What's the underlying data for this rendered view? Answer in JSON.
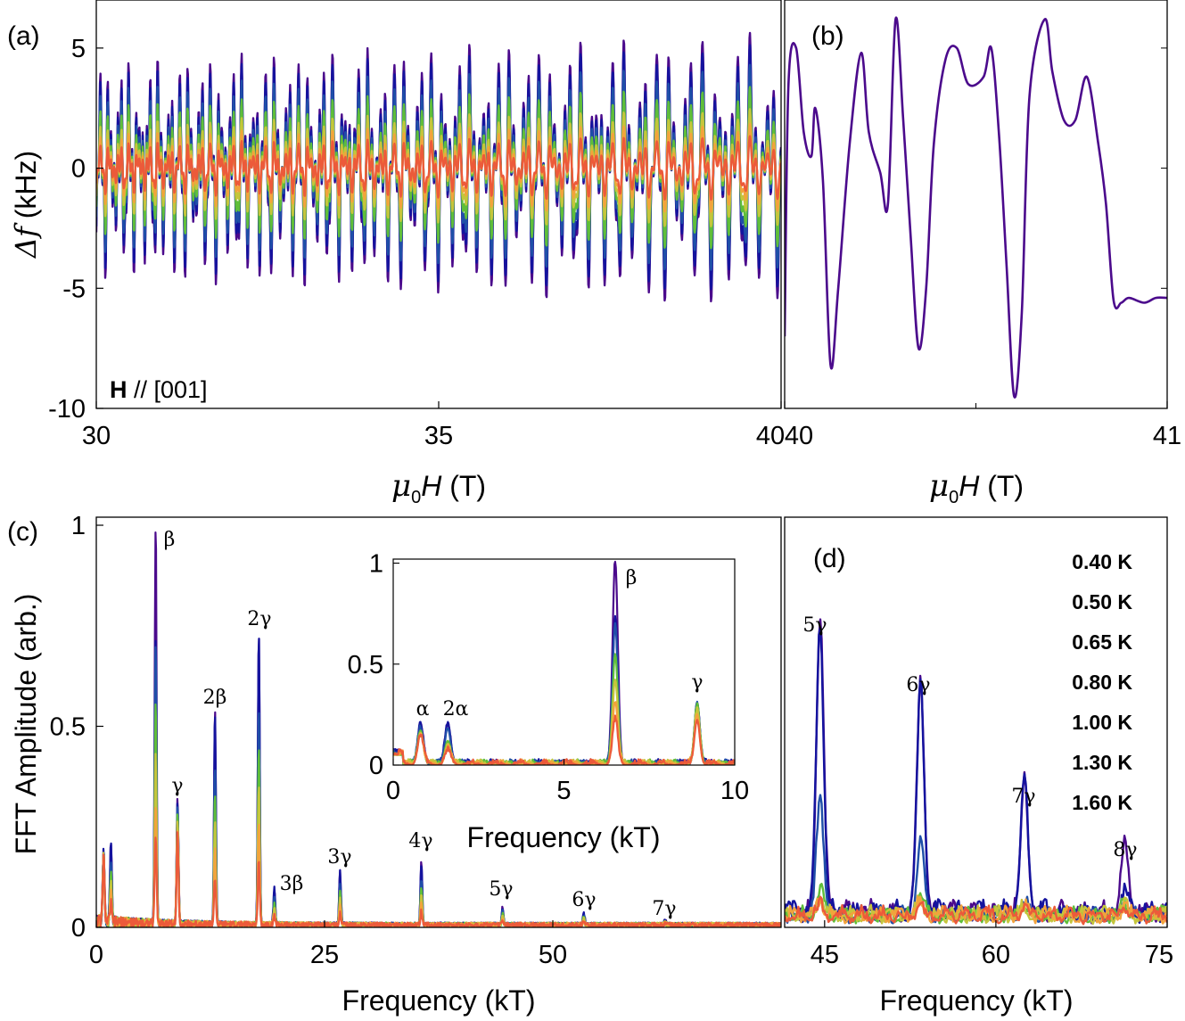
{
  "colors": {
    "0.40 K": "#4b0a8c",
    "0.50 K": "#14139e",
    "0.65 K": "#1f4fa8",
    "0.80 K": "#5fbe3a",
    "1.00 K": "#c5c53c",
    "1.30 K": "#f2a33c",
    "1.60 K": "#ec5a3a"
  },
  "panels": {
    "a": {
      "label": "(a)",
      "annotation_bold": "H",
      "annotation_rest": " // [001]"
    },
    "b": {
      "label": "(b)"
    },
    "c": {
      "label": "(c)"
    },
    "d": {
      "label": "(d)"
    }
  },
  "chart_data": [
    {
      "id": "a",
      "type": "line",
      "title": "",
      "xlabel": "μ0H (T)",
      "ylabel": "Δf (kHz)",
      "xlim": [
        30,
        40
      ],
      "ylim": [
        -10,
        7
      ],
      "xticks": [
        "30",
        "35",
        "40"
      ],
      "yticks": [
        "5",
        "0",
        "-5",
        "-10"
      ],
      "series": [
        {
          "name": "0.40 K",
          "amplitude_kHz": 5.5
        },
        {
          "name": "0.50 K",
          "amplitude_kHz": 5.0
        },
        {
          "name": "0.65 K",
          "amplitude_kHz": 4.2
        },
        {
          "name": "0.80 K",
          "amplitude_kHz": 3.3
        },
        {
          "name": "1.00 K",
          "amplitude_kHz": 2.4
        },
        {
          "name": "1.30 K",
          "amplitude_kHz": 1.8
        },
        {
          "name": "1.60 K",
          "amplitude_kHz": 1.3
        }
      ]
    },
    {
      "id": "b",
      "type": "line",
      "xlabel": "μ0H (T)",
      "xlim": [
        40,
        41
      ],
      "ylim": [
        -10,
        7
      ],
      "xticks": [
        "40",
        "41"
      ],
      "series": [
        {
          "name": "0.40 K",
          "x": [
            40.0,
            40.01,
            40.03,
            40.05,
            40.07,
            40.08,
            40.1,
            40.12,
            40.14,
            40.17,
            40.2,
            40.22,
            40.25,
            40.27,
            40.29,
            40.31,
            40.33,
            40.35,
            40.37,
            40.39,
            40.42,
            40.45,
            40.48,
            40.52,
            40.54,
            40.56,
            40.58,
            40.6,
            40.62,
            40.64,
            40.68,
            40.7,
            40.73,
            40.76,
            40.79,
            40.82,
            40.84,
            40.86,
            40.88,
            40.9,
            40.94,
            40.97,
            41.0
          ],
          "y": [
            -7.0,
            3.5,
            5.0,
            1.5,
            0.5,
            2.5,
            -0.5,
            -8.2,
            -5.0,
            1.0,
            4.8,
            1.5,
            -0.2,
            -1.5,
            6.2,
            2.0,
            -3.0,
            -7.5,
            -5.0,
            1.0,
            4.5,
            5.0,
            3.5,
            3.8,
            5.0,
            1.5,
            -4.0,
            -9.5,
            -6.0,
            3.0,
            6.2,
            4.0,
            2.0,
            2.0,
            3.8,
            1.0,
            -1.5,
            -5.5,
            -5.6,
            -5.4,
            -5.6,
            -5.4,
            -5.4
          ]
        }
      ]
    },
    {
      "id": "c",
      "type": "line",
      "xlabel": "Frequency (kT)",
      "ylabel": "FFT Amplitude (arb.)",
      "xlim": [
        0,
        75
      ],
      "ylim": [
        0,
        1.02
      ],
      "xticks": [
        "0",
        "25",
        "50"
      ],
      "yticks": [
        "0",
        "0.5",
        "1"
      ],
      "peaks": [
        {
          "label": "α",
          "f": 0.8,
          "amp": 0.19
        },
        {
          "label": "2α",
          "f": 1.6,
          "amp": 0.2
        },
        {
          "label": "β",
          "f": 6.5,
          "amp": 1.0
        },
        {
          "label": "γ",
          "f": 8.9,
          "amp": 0.31
        },
        {
          "label": "2β",
          "f": 13.0,
          "amp": 0.53
        },
        {
          "label": "2γ",
          "f": 17.8,
          "amp": 0.73
        },
        {
          "label": "3β",
          "f": 19.5,
          "amp": 0.09
        },
        {
          "label": "3γ",
          "f": 26.7,
          "amp": 0.13
        },
        {
          "label": "4γ",
          "f": 35.6,
          "amp": 0.155
        },
        {
          "label": "5γ",
          "f": 44.5,
          "amp": 0.045
        },
        {
          "label": "6γ",
          "f": 53.4,
          "amp": 0.03
        },
        {
          "label": "7γ",
          "f": 62.3,
          "amp": 0.01
        }
      ],
      "temperature_scale": [
        1.0,
        0.74,
        0.72,
        0.55,
        0.42,
        0.3,
        0.22
      ],
      "peak_labels": [
        "β",
        "γ",
        "2β",
        "2γ",
        "3β",
        "3γ",
        "4γ",
        "5γ",
        "6γ",
        "7γ"
      ]
    },
    {
      "id": "c-inset",
      "type": "line",
      "xlabel": "Frequency (kT)",
      "xlim": [
        0,
        10
      ],
      "ylim": [
        0,
        1.02
      ],
      "xticks": [
        "0",
        "5",
        "10"
      ],
      "yticks": [
        "0",
        "0.5",
        "1"
      ],
      "peak_labels": [
        "α",
        "2α",
        "β",
        "γ"
      ]
    },
    {
      "id": "d",
      "type": "line",
      "xlabel": "Frequency (kT)",
      "xlim": [
        41.5,
        75
      ],
      "ylim": [
        0,
        1
      ],
      "xticks": [
        "45",
        "60",
        "75"
      ],
      "peaks": [
        {
          "label": "5γ",
          "f": 44.6,
          "amp": [
            0.72,
            0.7,
            0.28,
            0.06,
            0.04,
            0.03,
            0.02
          ]
        },
        {
          "label": "6γ",
          "f": 53.4,
          "amp": [
            0.58,
            0.55,
            0.18,
            0.06,
            0.04,
            0.03,
            0.02
          ]
        },
        {
          "label": "7γ",
          "f": 62.5,
          "amp": [
            0.33,
            0.32,
            0.03,
            0.03,
            0.02,
            0.02,
            0.02
          ]
        },
        {
          "label": "8γ",
          "f": 71.3,
          "amp": [
            0.16,
            0.05,
            0.03,
            0.03,
            0.02,
            0.02,
            0.02
          ]
        }
      ],
      "legend": [
        "0.40 K",
        "0.50 K",
        "0.65 K",
        "0.80 K",
        "1.00 K",
        "1.30 K",
        "1.60 K"
      ],
      "legend_placement": "top-right"
    }
  ]
}
